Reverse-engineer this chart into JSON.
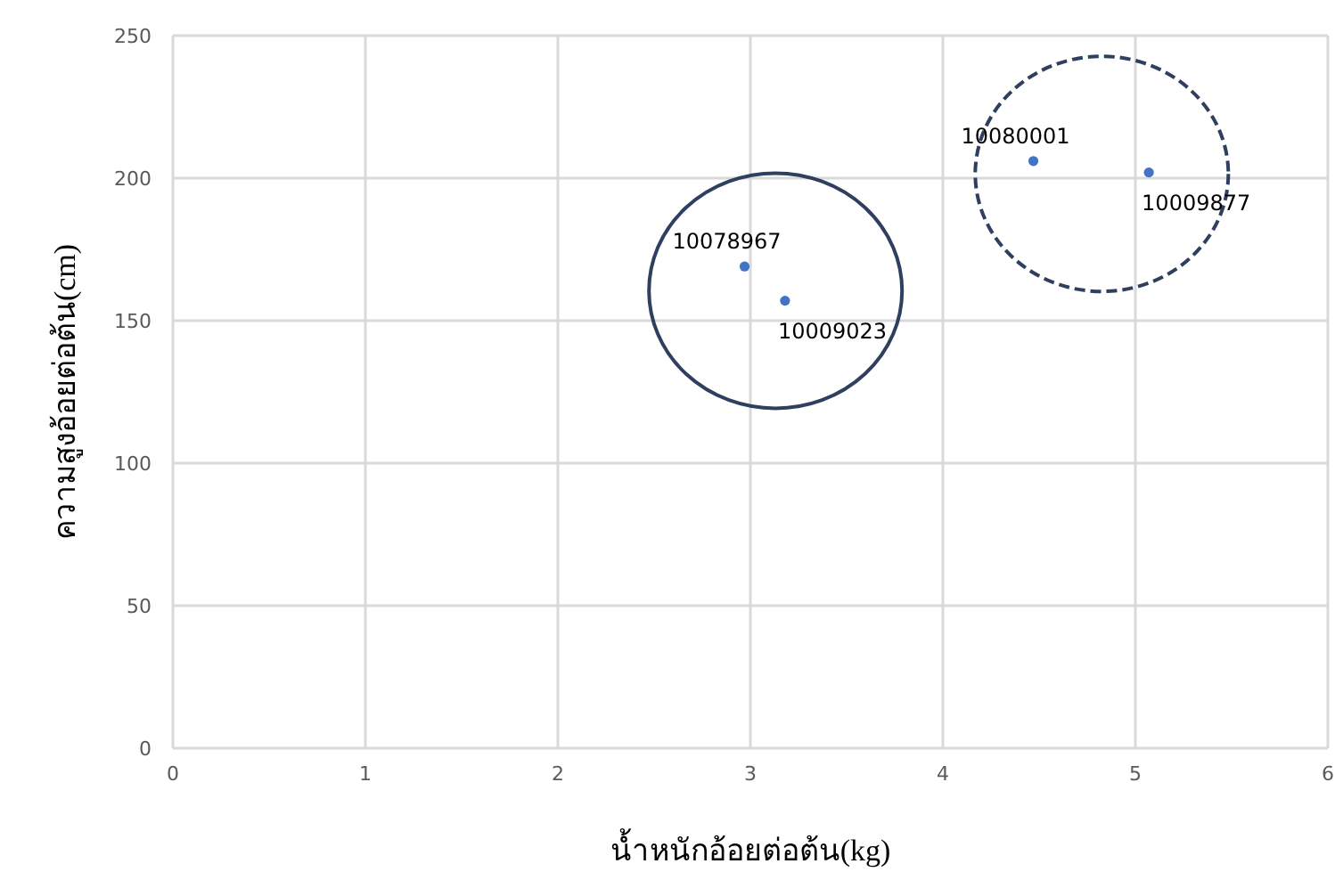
{
  "chart_data": {
    "type": "scatter",
    "xlabel": "น้ำหนักอ้อยต่อต้น(kg)",
    "ylabel": "ความสูงอ้อยต่อต้น(cm)",
    "series": [
      {
        "color": "#4472c4",
        "x": [
          2.97,
          3.18,
          4.47,
          5.07
        ],
        "values": [
          169,
          157,
          206,
          202
        ]
      }
    ],
    "xlim": [
      0,
      6
    ],
    "xticks": [
      0,
      1,
      2,
      3,
      4,
      5,
      6
    ],
    "ylim": [
      0,
      250
    ],
    "yticks": [
      0,
      50,
      100,
      150,
      200,
      250
    ],
    "grid": true,
    "marker": "circle",
    "annotations": [
      {
        "text": "10078967",
        "x": 2.97,
        "y": 169
      },
      {
        "text": "10009023",
        "x": 3.18,
        "y": 157
      },
      {
        "text": "10080001",
        "x": 4.47,
        "y": 206
      },
      {
        "text": "10009877",
        "x": 5.07,
        "y": 202
      }
    ]
  }
}
